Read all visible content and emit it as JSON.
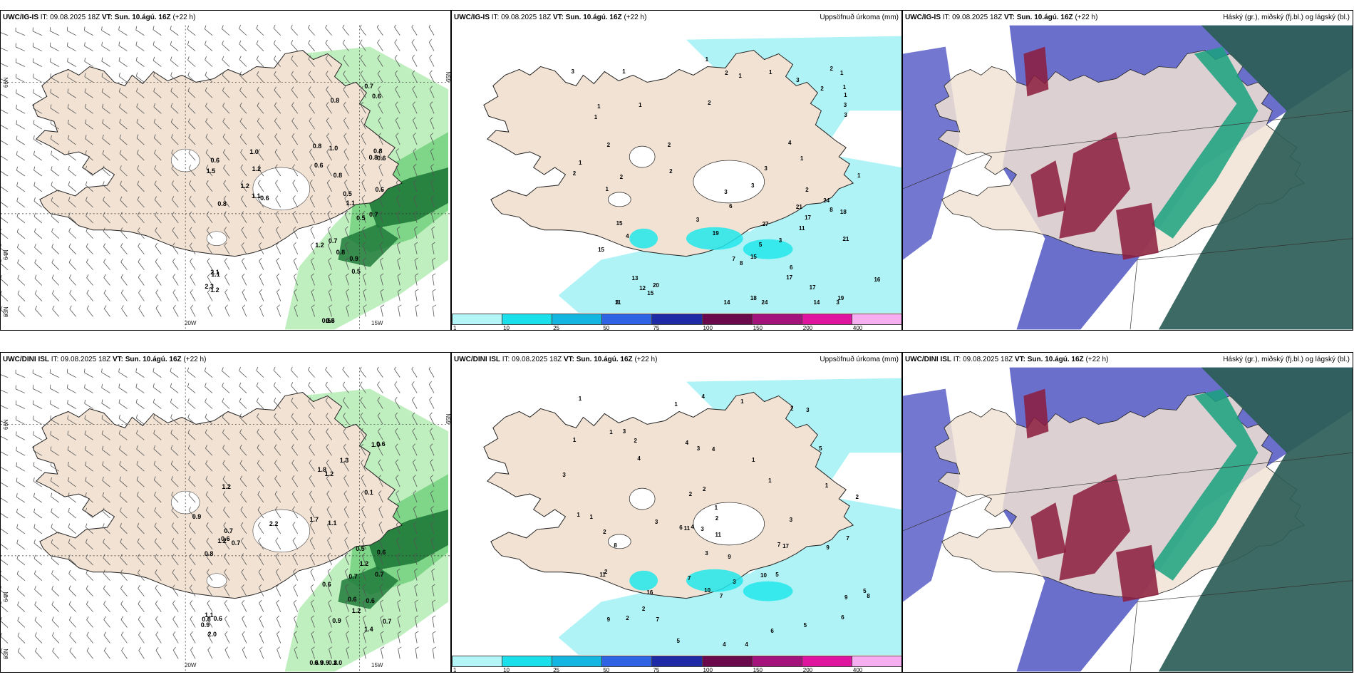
{
  "colors": {
    "land": "#f1e2d3",
    "precip_light": "#aff3f6",
    "precip_cyan": "#22e6ea",
    "wind_rain_light": "#b8ecb8",
    "wind_rain_dark": "#1f7a3a",
    "cloud_high": "#5a5fc7",
    "cloud_mid": "#1aa27e",
    "cloud_low": "#2d5d57",
    "cloud_red": "#8c1c3c"
  },
  "colorbar": {
    "labels": [
      "1",
      "10",
      "25",
      "50",
      "75",
      "100",
      "150",
      "200",
      "400"
    ],
    "colors": [
      "#b4f6f8",
      "#19e0ea",
      "#14b6e1",
      "#2e63e4",
      "#1e2aa6",
      "#6a0a4c",
      "#a4127c",
      "#e0159f",
      "#f6aef0"
    ]
  },
  "panels": [
    {
      "id": "igis-wind",
      "title_model": "UWC/IG-IS",
      "it_label": "IT:",
      "it_value": "09.08.2025 18Z",
      "vt_label": "VT:",
      "vt_value": "Sun. 10.ágú. 16Z",
      "lead": "(+22 h)",
      "right_title": "",
      "axis": {
        "x1": "20W",
        "x2": "15W",
        "y1": "65N",
        "y2": "64N",
        "y3": "66N",
        "y4": "63N"
      },
      "values": [
        "0.5",
        "0.8",
        "0.7",
        "1.0",
        "0.8",
        "0.9",
        "0.6",
        "0.8",
        "1.1",
        "0.8",
        "1.2",
        "0.8",
        "0.5",
        "0.5",
        "0.8",
        "0.7",
        "0.6",
        "0.6",
        "0.7",
        "0.6",
        "1.1",
        "1.2",
        "0.8",
        "0.6",
        "1.2",
        "1.0",
        "1.5",
        "0.6",
        "1.2",
        "0.8",
        "2.3",
        "0.6",
        "1.1",
        "0.5",
        "2.1"
      ]
    },
    {
      "id": "igis-precip",
      "title_model": "UWC/IG-IS",
      "it_label": "IT:",
      "it_value": "09.08.2025 18Z",
      "vt_label": "VT:",
      "vt_value": "Sun. 10.ágú. 16Z",
      "lead": "(+22 h)",
      "right_title": "Uppsöfnuð úrkoma (mm)",
      "values": [
        "2",
        "3",
        "3",
        "2",
        "2",
        "4",
        "3",
        "2",
        "2",
        "1",
        "1",
        "1",
        "1",
        "2",
        "1",
        "1",
        "3",
        "1",
        "1",
        "1",
        "2",
        "1",
        "1",
        "1",
        "2",
        "3",
        "1",
        "2",
        "1",
        "3",
        "3",
        "7",
        "6",
        "5",
        "3",
        "2",
        "3",
        "4",
        "14",
        "17",
        "15",
        "12",
        "21",
        "27",
        "15",
        "8",
        "16",
        "21",
        "19",
        "24",
        "18",
        "17",
        "17",
        "15",
        "18",
        "14",
        "20",
        "11",
        "15",
        "19",
        "11",
        "24",
        "8",
        "13",
        "6",
        "3",
        "3"
      ]
    },
    {
      "id": "igis-cloud",
      "title_model": "UWC/IG-IS",
      "it_label": "IT:",
      "it_value": "09.08.2025 18Z",
      "vt_label": "VT:",
      "vt_value": "Sun. 10.ágú. 16Z",
      "lead": "(+22 h)",
      "right_title": "Háský (gr.), miðský (fj.bl.) og lágský (bl.)"
    },
    {
      "id": "dini-wind",
      "title_model": "UWC/DINI ISL",
      "it_label": "IT:",
      "it_value": "09.08.2025 18Z",
      "vt_label": "VT:",
      "vt_value": "Sun. 10.ágú. 16Z",
      "lead": "(+22 h)",
      "right_title": "",
      "axis": {
        "x1": "20W",
        "x2": "15W",
        "y1": "65N",
        "y2": "64N",
        "y3": "66N",
        "y4": "63N"
      },
      "values": [
        "1.7",
        "1.1",
        "0.6",
        "1.2",
        "0.7",
        "1.3",
        "1.4",
        "0.6",
        "0.5",
        "0.7",
        "0.6",
        "0.1",
        "1.8",
        "0.9",
        "0.7",
        "0.6",
        "1.2",
        "1.0",
        "1.2",
        "0.6",
        "1.2",
        "0.7",
        "0.7",
        "1.2",
        "2.2",
        "0.6",
        "0.9",
        "0.8",
        "0.8",
        "1.0",
        "1.1",
        "0.9",
        "0.9",
        "0.8",
        "0.6",
        "0.6",
        "2.0",
        "0.9"
      ]
    },
    {
      "id": "dini-precip",
      "title_model": "UWC/DINI ISL",
      "it_label": "IT:",
      "it_value": "09.08.2025 18Z",
      "vt_label": "VT:",
      "vt_value": "Sun. 10.ágú. 16Z",
      "lead": "(+22 h)",
      "right_title": "Uppsöfnuð úrkoma (mm)",
      "values": [
        "1",
        "3",
        "4",
        "4",
        "1",
        "3",
        "2",
        "2",
        "1",
        "1",
        "3",
        "2",
        "2",
        "3",
        "1",
        "2",
        "1",
        "1",
        "1",
        "3",
        "4",
        "2",
        "4",
        "1",
        "1",
        "1",
        "4",
        "5",
        "2",
        "3",
        "4",
        "6",
        "11",
        "8",
        "5",
        "5",
        "3",
        "6",
        "2",
        "4",
        "7",
        "17",
        "16",
        "6",
        "5",
        "11",
        "2",
        "7",
        "5",
        "10",
        "9",
        "7",
        "9",
        "8",
        "9",
        "10",
        "11",
        "9",
        "7",
        "7",
        "3",
        "3",
        "2"
      ]
    },
    {
      "id": "dini-cloud",
      "title_model": "UWC/DINI ISL",
      "it_label": "IT:",
      "it_value": "09.08.2025 18Z",
      "vt_label": "VT:",
      "vt_value": "Sun. 10.ágú. 16Z",
      "lead": "(+22 h)",
      "right_title": "Háský (gr.), miðský (fj.bl.) og lágský (bl.)"
    }
  ]
}
